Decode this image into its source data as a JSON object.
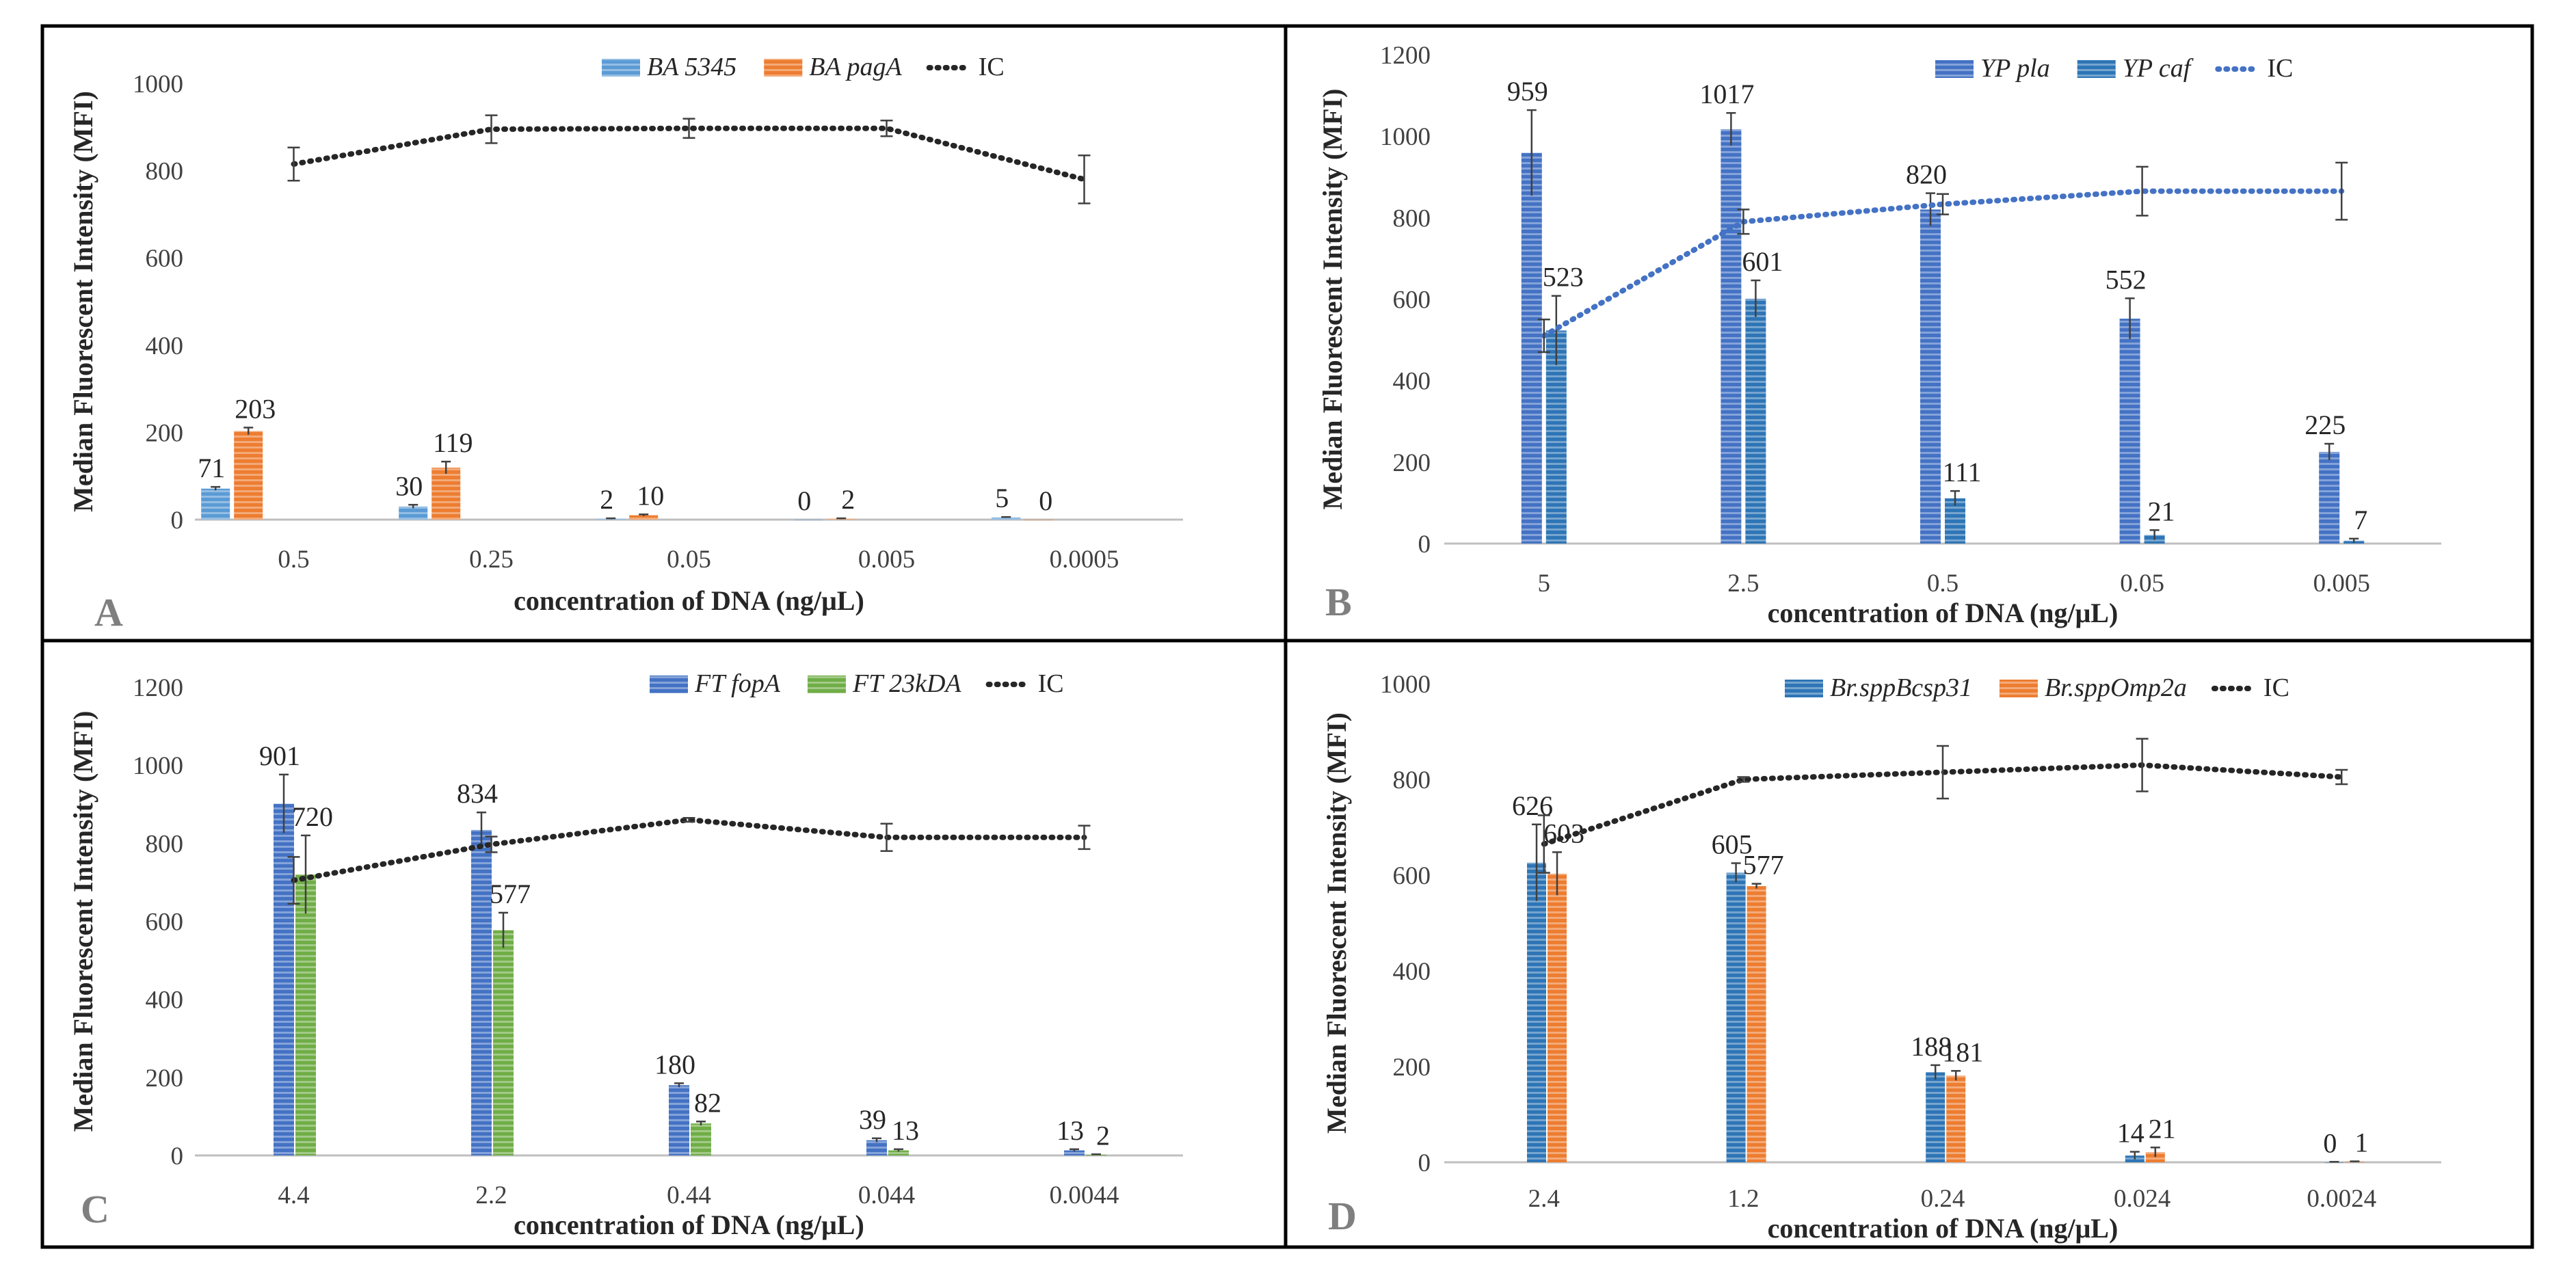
{
  "figure": {
    "colors": {
      "blue": "#4472c4",
      "blue_light": "#5b9bd5",
      "orange": "#ed7d31",
      "green": "#70ad47",
      "teal": "#2e75b6",
      "ic_black": "#262626",
      "ic_blue": "#4472c4",
      "border": "#000000",
      "axis": "#bfbfbf"
    }
  },
  "chart_data": [
    {
      "panel": "A",
      "type": "bar",
      "title": "",
      "xlabel": "concentration of DNA (ng/μL)",
      "ylabel": "Median Fluorescent Intensity (MFI)",
      "ylim": [
        0,
        1000
      ],
      "yticks": [
        "0",
        "200",
        "400",
        "600",
        "800",
        "1000"
      ],
      "categories": [
        "0.5",
        "0.25",
        "0.05",
        "0.005",
        "0.0005"
      ],
      "series": [
        {
          "name": "BA 5345",
          "color": "#5b9bd5",
          "values": [
            71,
            30,
            2,
            0,
            5
          ],
          "labels": [
            "71",
            "30",
            "2",
            "0",
            "5"
          ],
          "errors": [
            4,
            4,
            1,
            0,
            1
          ]
        },
        {
          "name": "BA pagA",
          "color": "#ed7d31",
          "values": [
            203,
            119,
            10,
            2,
            0
          ],
          "labels": [
            "203",
            "119",
            "10",
            "2",
            "0"
          ],
          "errors": [
            8,
            14,
            2,
            1,
            0
          ]
        }
      ],
      "ic": {
        "name": "IC",
        "color": "#262626",
        "values": [
          815,
          895,
          897,
          897,
          780
        ],
        "errors": [
          38,
          32,
          22,
          18,
          55
        ]
      },
      "legend": "top-right"
    },
    {
      "panel": "B",
      "type": "bar",
      "title": "",
      "xlabel": "concentration of DNA (ng/μL)",
      "ylabel": "Median Fluorescent Intensity (MFI)",
      "ylim": [
        0,
        1200
      ],
      "yticks": [
        "0",
        "200",
        "400",
        "600",
        "800",
        "1000",
        "1200"
      ],
      "categories": [
        "5",
        "2.5",
        "0.5",
        "0.05",
        "0.005"
      ],
      "series": [
        {
          "name": "YP pla",
          "color": "#4472c4",
          "values": [
            959,
            1017,
            820,
            552,
            225
          ],
          "labels": [
            "959",
            "1017",
            "820",
            "552",
            "225"
          ],
          "errors": [
            105,
            40,
            40,
            50,
            20
          ]
        },
        {
          "name": "YP caf",
          "color": "#2e75b6",
          "values": [
            523,
            601,
            111,
            21,
            7
          ],
          "labels": [
            "523",
            "601",
            "111",
            "21",
            "7"
          ],
          "errors": [
            85,
            45,
            18,
            12,
            5
          ]
        }
      ],
      "ic": {
        "name": "IC",
        "color": "#4472c4",
        "values": [
          510,
          790,
          833,
          865,
          865
        ],
        "errors": [
          40,
          30,
          25,
          60,
          70
        ]
      },
      "legend": "top-right"
    },
    {
      "panel": "C",
      "type": "bar",
      "title": "",
      "xlabel": "concentration of DNA (ng/μL)",
      "ylabel": "Median Fluorescent Intensity (MFI)",
      "ylim": [
        0,
        1200
      ],
      "yticks": [
        "0",
        "200",
        "400",
        "600",
        "800",
        "1000",
        "1200"
      ],
      "categories": [
        "4.4",
        "2.2",
        "0.44",
        "0.044",
        "0.0044"
      ],
      "series": [
        {
          "name": "FT fopA",
          "color": "#4472c4",
          "values": [
            901,
            834,
            180,
            39,
            13
          ],
          "labels": [
            "901",
            "834",
            "180",
            "39",
            "13"
          ],
          "errors": [
            75,
            45,
            5,
            5,
            3
          ]
        },
        {
          "name": "FT 23kDA",
          "color": "#70ad47",
          "values": [
            720,
            577,
            82,
            13,
            2
          ],
          "labels": [
            "720",
            "577",
            "82",
            "13",
            "2"
          ],
          "errors": [
            100,
            45,
            5,
            3,
            1
          ]
        }
      ],
      "ic": {
        "name": "IC",
        "color": "#262626",
        "values": [
          705,
          797,
          860,
          815,
          815
        ],
        "errors": [
          60,
          20,
          5,
          35,
          30
        ]
      },
      "legend": "top-right"
    },
    {
      "panel": "D",
      "type": "bar",
      "title": "",
      "xlabel": "concentration of DNA (ng/μL)",
      "ylabel": "Median Fluorescent Intensity (MFI)",
      "ylim": [
        0,
        1000
      ],
      "yticks": [
        "0",
        "200",
        "400",
        "600",
        "800",
        "1000"
      ],
      "categories": [
        "2.4",
        "1.2",
        "0.24",
        "0.024",
        "0.0024"
      ],
      "series": [
        {
          "name": "Br.sppBcsp31",
          "color": "#2e75b6",
          "values": [
            626,
            605,
            188,
            14,
            0
          ],
          "labels": [
            "626",
            "605",
            "188",
            "14",
            "0"
          ],
          "errors": [
            80,
            20,
            15,
            8,
            1
          ]
        },
        {
          "name": "Br.sppOmp2a",
          "color": "#ed7d31",
          "values": [
            603,
            577,
            181,
            21,
            1
          ],
          "labels": [
            "603",
            "577",
            "181",
            "21",
            "1"
          ],
          "errors": [
            45,
            5,
            10,
            10,
            1
          ]
        }
      ],
      "ic": {
        "name": "IC",
        "color": "#262626",
        "values": [
          665,
          800,
          815,
          830,
          805
        ],
        "errors": [
          60,
          5,
          55,
          55,
          15
        ]
      },
      "legend": "top-right"
    }
  ]
}
